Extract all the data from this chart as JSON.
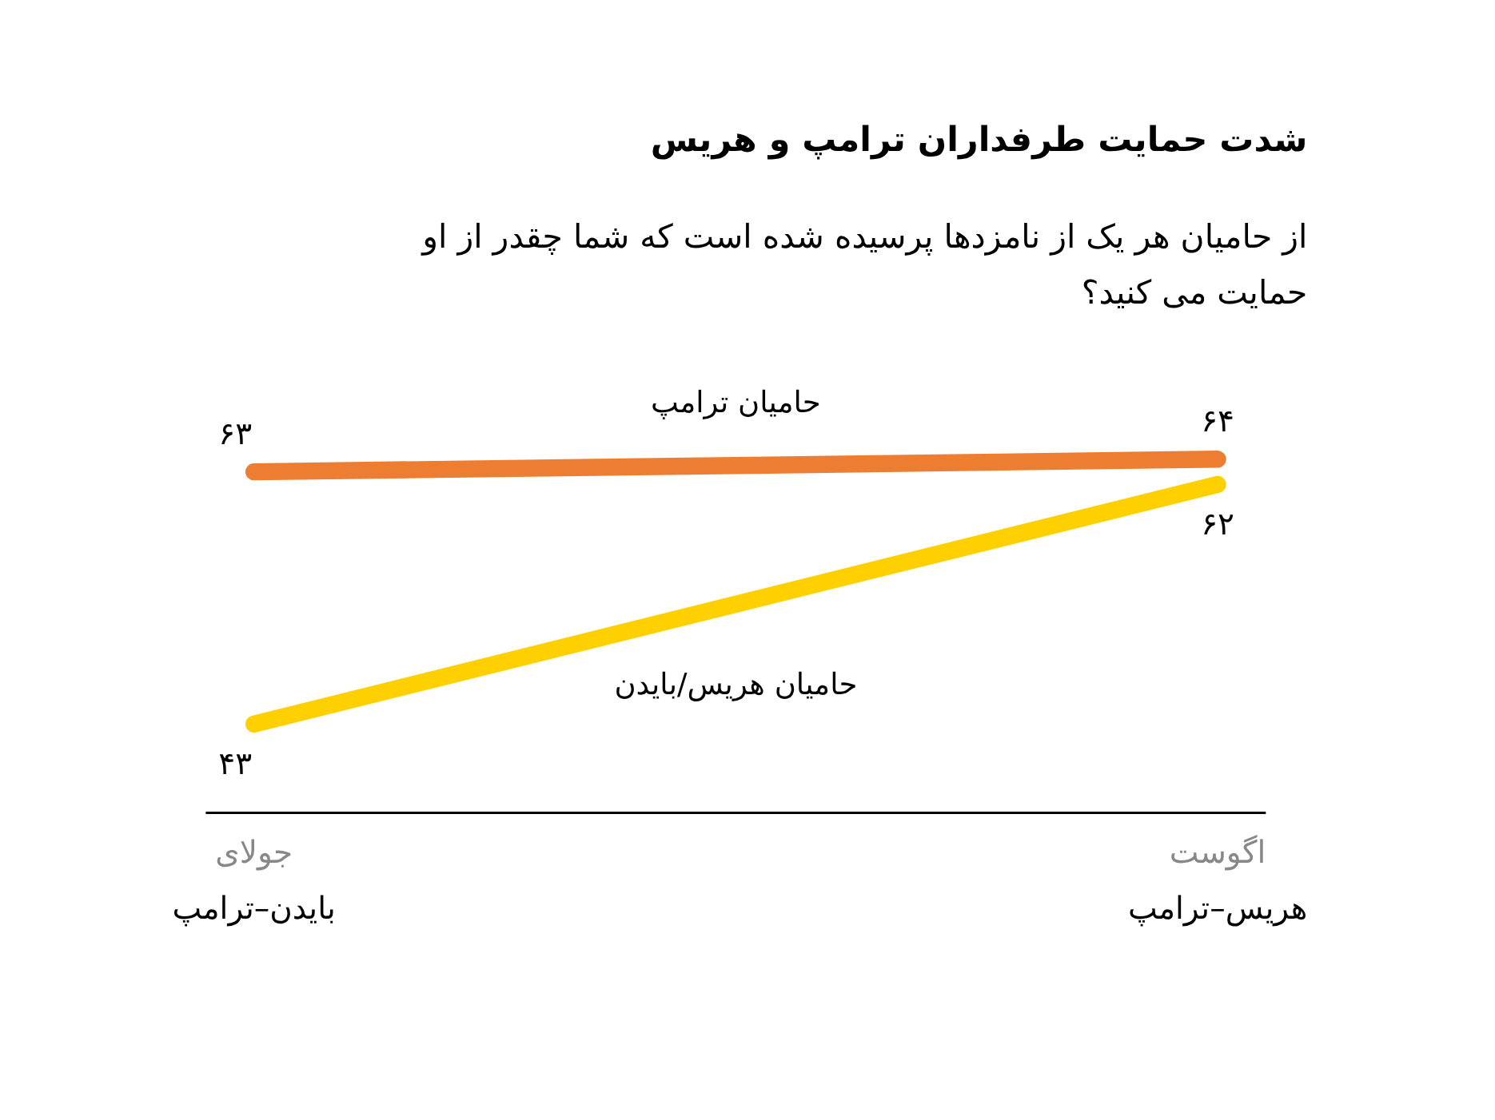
{
  "chart_data": {
    "type": "line",
    "title": "شدت حمایت طرفداران ترامپ و هریس",
    "subtitle": "از حامیان هر یک از نامزدها پرسیده شده است که شما چقدر از او حمایت می کنید؟",
    "categories": [
      "جولای\nبایدن–ترامپ",
      "اگوست\nهریس–ترامپ"
    ],
    "series": [
      {
        "name": "حامیان ترامپ",
        "color": "#ed7d31",
        "values": [
          63,
          64
        ],
        "value_labels": [
          "۶۳",
          "۶۴"
        ]
      },
      {
        "name": "حامیان هریس/بایدن",
        "color": "#ffd000",
        "values": [
          43,
          62
        ],
        "value_labels": [
          "۴۳",
          "۶۲"
        ]
      }
    ],
    "legend": false,
    "line_style": "solid"
  }
}
